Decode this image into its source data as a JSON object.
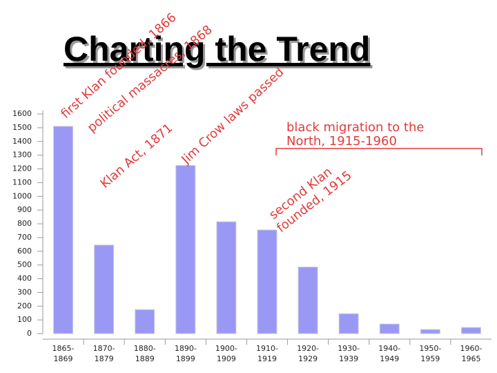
{
  "title": "Charting the Trend",
  "chart_data": {
    "type": "bar",
    "categories": [
      [
        "1865-",
        "1869"
      ],
      [
        "1870-",
        "1879"
      ],
      [
        "1880-",
        "1889"
      ],
      [
        "1890-",
        "1899"
      ],
      [
        "1900-",
        "1909"
      ],
      [
        "1910-",
        "1919"
      ],
      [
        "1920-",
        "1929"
      ],
      [
        "1930-",
        "1939"
      ],
      [
        "1940-",
        "1949"
      ],
      [
        "1950-",
        "1959"
      ],
      [
        "1960-",
        "1965"
      ]
    ],
    "values": [
      1510,
      645,
      175,
      1225,
      815,
      755,
      485,
      145,
      70,
      30,
      45
    ],
    "color": "#9999f5",
    "ylim": [
      0,
      1600
    ],
    "yticks": [
      0,
      100,
      200,
      300,
      400,
      500,
      600,
      700,
      800,
      900,
      1000,
      1100,
      1200,
      1300,
      1400,
      1500,
      1600
    ],
    "grid": false,
    "annotations": [
      "first Klan founded, 1866",
      "political massacres, 1868",
      "Klan Act, 1871",
      "Jim Crow laws passed",
      "second Klan",
      "founded, 1915",
      "black migration to the",
      "North, 1915-1960"
    ],
    "annotation_color": "#e23a3a"
  }
}
